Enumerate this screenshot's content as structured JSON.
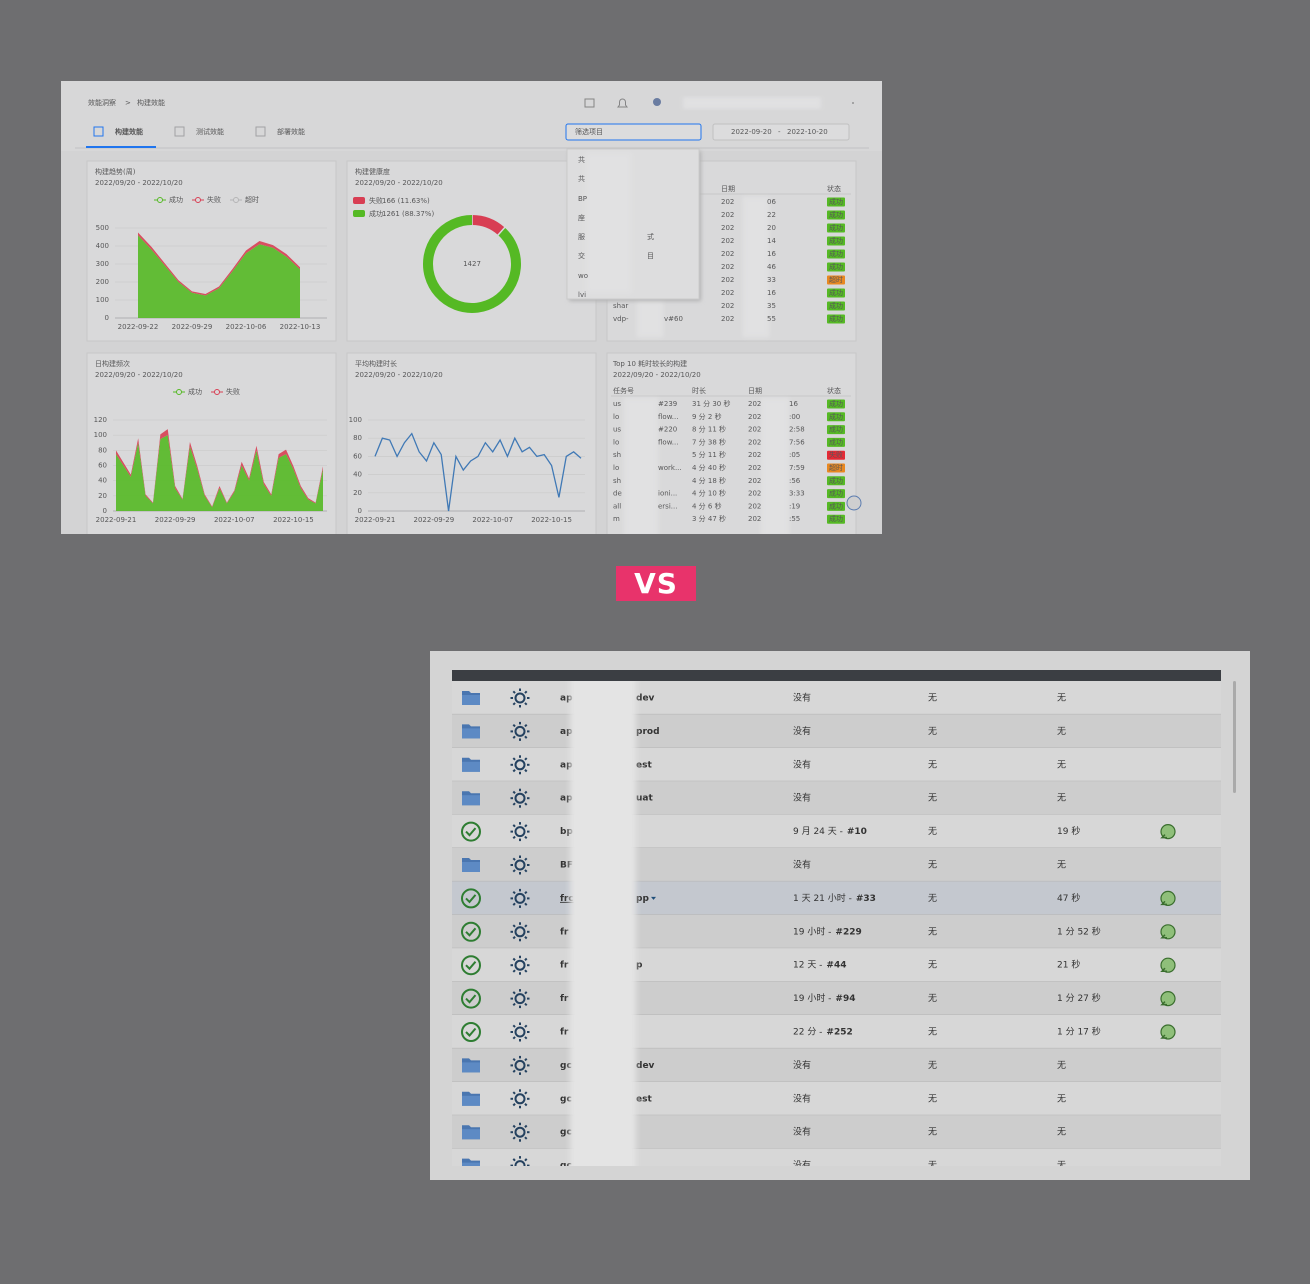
{
  "header": {
    "breadcrumb": [
      "效能洞察",
      "构建效能"
    ],
    "breadcrumb_sep": ">",
    "tabs": [
      "构建效能",
      "测试效能",
      "部署效能"
    ],
    "project_filter": "筛选项目",
    "date_from": "2022-09-20",
    "date_sep": "-",
    "date_to": "2022-10-20",
    "dropdown": [
      {
        "text": "共"
      },
      {
        "text": "共"
      },
      {
        "text": "BP"
      },
      {
        "text": "座"
      },
      {
        "text": "服",
        "suffix": "式"
      },
      {
        "text": "交",
        "suffix": "目"
      },
      {
        "text": "wo"
      },
      {
        "text": "lvi"
      }
    ]
  },
  "chart_data": [
    {
      "type": "area",
      "stacked": true,
      "title": "构建趋势(周)",
      "subtitle": "2022/09/20 - 2022/10/20",
      "categories": [
        "2022-09-22",
        null,
        null,
        null,
        "2022-09-29",
        null,
        null,
        null,
        "2022-10-06",
        null,
        null,
        null,
        "2022-10-13"
      ],
      "series": [
        {
          "name": "成功",
          "color": "#52c41a",
          "values": [
            460,
            380,
            290,
            200,
            140,
            125,
            165,
            260,
            360,
            410,
            390,
            340,
            270
          ]
        },
        {
          "name": "失败",
          "color": "#e8384f",
          "values": [
            15,
            15,
            12,
            10,
            8,
            8,
            10,
            12,
            15,
            18,
            15,
            15,
            12
          ]
        },
        {
          "name": "超时",
          "color": "#bfbfbf",
          "values": [
            0,
            0,
            0,
            0,
            0,
            0,
            0,
            0,
            0,
            0,
            0,
            0,
            0
          ]
        }
      ],
      "ylim": [
        0,
        500
      ],
      "yticks": [
        0,
        100,
        200,
        300,
        400,
        500
      ],
      "grid": true
    },
    {
      "type": "pie",
      "title": "构建健康度",
      "subtitle": "2022/09/20 - 2022/10/20",
      "categories": [
        "失败",
        "成功"
      ],
      "values": [
        166,
        1261
      ],
      "value_labels": [
        "166 (11.63%)",
        "1261 (88.37%)"
      ],
      "colors": [
        "#e8384f",
        "#52c41a"
      ],
      "total": 1427
    },
    {
      "type": "area",
      "stacked": true,
      "title": "日构建频次",
      "subtitle": "2022/09/20 - 2022/10/20",
      "categories": [
        "2022-09-21",
        null,
        null,
        null,
        null,
        null,
        null,
        null,
        "2022-09-29",
        null,
        null,
        null,
        null,
        null,
        null,
        null,
        "2022-10-07",
        null,
        null,
        null,
        null,
        null,
        null,
        null,
        "2022-10-15",
        null,
        null,
        null,
        null
      ],
      "series": [
        {
          "name": "成功",
          "color": "#52c41a",
          "values": [
            75,
            60,
            45,
            90,
            20,
            10,
            95,
            100,
            30,
            15,
            85,
            55,
            20,
            5,
            30,
            10,
            25,
            60,
            40,
            80,
            35,
            20,
            70,
            75,
            55,
            30,
            15,
            10,
            55
          ]
        },
        {
          "name": "失败",
          "color": "#e8384f",
          "values": [
            5,
            4,
            3,
            6,
            2,
            1,
            6,
            8,
            3,
            1,
            6,
            4,
            2,
            1,
            3,
            1,
            2,
            5,
            3,
            6,
            3,
            2,
            5,
            6,
            4,
            3,
            2,
            1,
            4
          ]
        }
      ],
      "ylim": [
        0,
        120
      ],
      "yticks": [
        0,
        20,
        40,
        60,
        80,
        100,
        120
      ],
      "grid": true
    },
    {
      "type": "line",
      "title": "平均构建时长",
      "subtitle": "2022/09/20 - 2022/10/20",
      "categories": [
        "2022-09-21",
        null,
        null,
        null,
        null,
        null,
        null,
        null,
        "2022-09-29",
        null,
        null,
        null,
        null,
        null,
        null,
        null,
        "2022-10-07",
        null,
        null,
        null,
        null,
        null,
        null,
        null,
        "2022-10-15",
        null,
        null,
        null,
        null
      ],
      "series": [
        {
          "name": "时长",
          "color": "#3b7bbf",
          "values": [
            60,
            80,
            78,
            60,
            75,
            85,
            65,
            55,
            75,
            62,
            0,
            60,
            45,
            55,
            60,
            75,
            65,
            78,
            60,
            80,
            65,
            70,
            60,
            62,
            50,
            15,
            60,
            65,
            58
          ]
        }
      ],
      "ylim": [
        0,
        100
      ],
      "yticks": [
        0,
        20,
        40,
        60,
        80,
        100
      ],
      "grid": true
    }
  ],
  "status_colors": {
    "成功": "#52c41a",
    "超时": "#fa8c16",
    "失败": "#f5222d"
  },
  "recent_builds": {
    "headers": [
      "日期",
      "状态"
    ],
    "rows": [
      {
        "date": "202",
        "time": "06",
        "status": "成功"
      },
      {
        "date": "202",
        "time": "22",
        "status": "成功"
      },
      {
        "date": "202",
        "time": "20",
        "status": "成功"
      },
      {
        "date": "202",
        "time": "14",
        "status": "成功"
      },
      {
        "date": "202",
        "time": "16",
        "status": "成功"
      },
      {
        "date": "202",
        "time": "46",
        "status": "成功"
      },
      {
        "date": "202",
        "time": "33",
        "status": "超时"
      },
      {
        "date": "202",
        "time": "16",
        "status": "成功"
      },
      {
        "name": "shar",
        "date": "202",
        "time": "35",
        "status": "成功"
      },
      {
        "name": "vdp-",
        "name_end": "v#60",
        "date": "202",
        "time": "55",
        "status": "成功"
      }
    ]
  },
  "top10": {
    "title": "Top 10 耗时较长的构建",
    "subtitle": "2022/09/20 - 2022/10/20",
    "headers": [
      "任务号",
      "时长",
      "日期",
      "状态"
    ],
    "rows": [
      {
        "name": "us",
        "name_end": "#239",
        "duration": "31 分 30 秒",
        "date": "202",
        "time": "16",
        "status": "成功"
      },
      {
        "name": "lo",
        "name_end": "flow...",
        "duration": "9 分 2 秒",
        "date": "202",
        "time": ":00",
        "status": "成功"
      },
      {
        "name": "us",
        "name_end": "#220",
        "duration": "8 分 11 秒",
        "date": "202",
        "time": "2:58",
        "status": "成功"
      },
      {
        "name": "lo",
        "name_end": "flow...",
        "duration": "7 分 38 秒",
        "date": "202",
        "time": "7:56",
        "status": "成功"
      },
      {
        "name": "sh",
        "duration": "5 分 11 秒",
        "date": "202",
        "time": ":05",
        "status": "失败"
      },
      {
        "name": "lo",
        "name_end": "work...",
        "duration": "4 分 40 秒",
        "date": "202",
        "time": "7:59",
        "status": "超时"
      },
      {
        "name": "sh",
        "duration": "4 分 18 秒",
        "date": "202",
        "time": ":56",
        "status": "成功"
      },
      {
        "name": "de",
        "name_end": "ioni...",
        "duration": "4 分 10 秒",
        "date": "202",
        "time": "3:33",
        "status": "成功"
      },
      {
        "name": "all",
        "name_end": "ersi...",
        "duration": "4 分 6 秒",
        "date": "202",
        "time": ":19",
        "status": "成功"
      },
      {
        "name": "m",
        "duration": "3 分 47 秒",
        "date": "202",
        "time": ":55",
        "status": "成功"
      }
    ]
  },
  "vs": "VS",
  "jobs": {
    "rows": [
      {
        "kind": "folder",
        "name": "ap",
        "name_end": "dev",
        "last_success": "没有",
        "last_failure": "无",
        "last_duration": "无"
      },
      {
        "kind": "folder",
        "name": "ap",
        "name_end": "prod",
        "last_success": "没有",
        "last_failure": "无",
        "last_duration": "无"
      },
      {
        "kind": "folder",
        "name": "ap",
        "name_end": "est",
        "last_success": "没有",
        "last_failure": "无",
        "last_duration": "无"
      },
      {
        "kind": "folder",
        "name": "ap",
        "name_end": "uat",
        "last_success": "没有",
        "last_failure": "无",
        "last_duration": "无"
      },
      {
        "kind": "ok",
        "name": "bp",
        "last_success": "9 月 24 天 -",
        "build": "#10",
        "last_failure": "无",
        "last_duration": "19 秒"
      },
      {
        "kind": "folder",
        "name": "BF",
        "last_success": "没有",
        "last_failure": "无",
        "last_duration": "无"
      },
      {
        "kind": "ok",
        "name": "frc",
        "name_end": "pp",
        "menu": true,
        "highlighted": true,
        "last_success": "1 天 21 小时 -",
        "build": "#33",
        "last_failure": "无",
        "last_duration": "47 秒"
      },
      {
        "kind": "ok",
        "name": "fr",
        "last_success": "19 小时 -",
        "build": "#229",
        "last_failure": "无",
        "last_duration": "1 分 52 秒"
      },
      {
        "kind": "ok",
        "name": "fr",
        "name_end": "p",
        "last_success": "12 天 -",
        "build": "#44",
        "last_failure": "无",
        "last_duration": "21 秒"
      },
      {
        "kind": "ok",
        "name": "fr",
        "last_success": "19 小时 -",
        "build": "#94",
        "last_failure": "无",
        "last_duration": "1 分 27 秒"
      },
      {
        "kind": "ok",
        "name": "fr",
        "last_success": "22 分 -",
        "build": "#252",
        "last_failure": "无",
        "last_duration": "1 分 17 秒"
      },
      {
        "kind": "folder",
        "name": "gc",
        "name_end": "dev",
        "last_success": "没有",
        "last_failure": "无",
        "last_duration": "无"
      },
      {
        "kind": "folder",
        "name": "gc",
        "name_end": "est",
        "last_success": "没有",
        "last_failure": "无",
        "last_duration": "无"
      },
      {
        "kind": "folder",
        "name": "gc",
        "last_success": "没有",
        "last_failure": "无",
        "last_duration": "无"
      },
      {
        "kind": "folder",
        "name": "gc",
        "last_success": "没有",
        "last_failure": "无",
        "last_duration": "无"
      }
    ]
  }
}
